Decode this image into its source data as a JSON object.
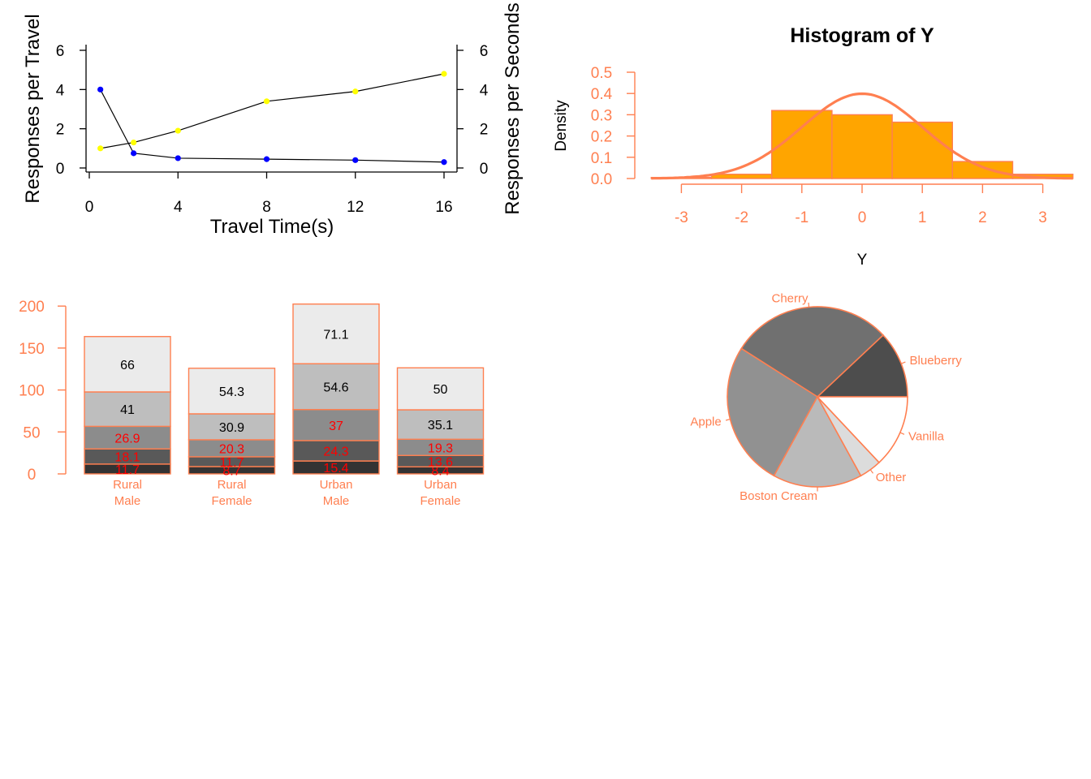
{
  "chart_data": [
    {
      "type": "line",
      "xlabel": "Travel Time(s)",
      "ylabel": "Responses per Travel",
      "ylabel_right": "Responses per Seconds",
      "x_ticks": [
        0,
        4,
        8,
        12,
        16
      ],
      "y_ticks": [
        0,
        2,
        4,
        6
      ],
      "y_ticks_right": [
        0,
        2,
        4,
        6
      ],
      "xlim": [
        0,
        16
      ],
      "ylim": [
        0,
        6
      ],
      "grid": false,
      "series": [
        {
          "color": "#0000FF",
          "x": [
            0.5,
            2,
            4,
            8,
            12,
            16
          ],
          "y": [
            4.0,
            0.75,
            0.5,
            0.45,
            0.4,
            0.3
          ]
        },
        {
          "color": "#FFFF00",
          "x": [
            0.5,
            2,
            4,
            8,
            12,
            16
          ],
          "y": [
            1.0,
            1.3,
            1.9,
            3.4,
            3.9,
            4.8
          ]
        }
      ]
    },
    {
      "type": "bar",
      "title": "Histogram of Y",
      "xlabel": "Y",
      "ylabel": "Density",
      "x_ticks": [
        "-3",
        "-2",
        "-1",
        "0",
        "1",
        "2",
        "3"
      ],
      "y_ticks": [
        "0.0",
        "0.1",
        "0.2",
        "0.3",
        "0.4",
        "0.5"
      ],
      "ylim": [
        0,
        0.5
      ],
      "xlim": [
        -3.5,
        3.5
      ],
      "bar_color": "#FFA500",
      "border_color": "#FF7F50",
      "bins": [
        {
          "from": -3.5,
          "to": -2.5,
          "density": 0.005
        },
        {
          "from": -2.5,
          "to": -1.5,
          "density": 0.02
        },
        {
          "from": -1.5,
          "to": -0.5,
          "density": 0.32
        },
        {
          "from": -0.5,
          "to": 0.5,
          "density": 0.3
        },
        {
          "from": 0.5,
          "to": 1.5,
          "density": 0.265
        },
        {
          "from": 1.5,
          "to": 2.5,
          "density": 0.08
        },
        {
          "from": 2.5,
          "to": 3.5,
          "density": 0.02
        }
      ],
      "curve": {
        "type": "normal-density",
        "mean": 0,
        "sd": 1,
        "color": "#FF7F50"
      }
    },
    {
      "type": "bar",
      "stacked": true,
      "categories": [
        [
          "Rural",
          "Male"
        ],
        [
          "Rural",
          "Female"
        ],
        [
          "Urban",
          "Male"
        ],
        [
          "Urban",
          "Female"
        ]
      ],
      "y_ticks": [
        0,
        50,
        100,
        150,
        200
      ],
      "ylim": [
        0,
        200
      ],
      "border_color": "#FF7F50",
      "series": [
        {
          "color": "#333333",
          "label_color": "#FF0000",
          "values": [
            11.7,
            8.7,
            15.4,
            8.4
          ]
        },
        {
          "color": "#595959",
          "label_color": "#FF0000",
          "values": [
            18.1,
            11.7,
            24.3,
            13.6
          ]
        },
        {
          "color": "#8C8C8C",
          "label_color": "#FF0000",
          "values": [
            26.9,
            20.3,
            37,
            19.3
          ]
        },
        {
          "color": "#BEBEBE",
          "label_color": "#000000",
          "values": [
            41,
            30.9,
            54.6,
            35.1
          ]
        },
        {
          "color": "#EBEBEB",
          "label_color": "#000000",
          "values": [
            66,
            54.3,
            71.1,
            50
          ]
        }
      ]
    },
    {
      "type": "pie",
      "border_color": "#FF7F50",
      "label_color": "#FF7F50",
      "slices": [
        {
          "label": "Blueberry",
          "value": 0.12,
          "color": "#4D4D4D"
        },
        {
          "label": "Cherry",
          "value": 0.29,
          "color": "#707070"
        },
        {
          "label": "Apple",
          "value": 0.26,
          "color": "#919191"
        },
        {
          "label": "Boston Cream",
          "value": 0.16,
          "color": "#BABABA"
        },
        {
          "label": "Other",
          "value": 0.04,
          "color": "#DCDCDC"
        },
        {
          "label": "Vanilla",
          "value": 0.13,
          "color": "#FFFFFF"
        }
      ]
    }
  ]
}
